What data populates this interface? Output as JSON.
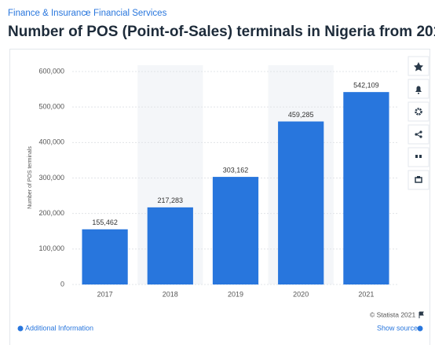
{
  "header": {
    "breadcrumb": [
      "Finance & Insurance",
      "Financial Services"
    ],
    "separator": "›"
  },
  "chart_data": {
    "type": "bar",
    "title": "Number of POS (Point-of-Sales) terminals in Nigeria from 201",
    "y_label": "Number of POS terminals",
    "categories": [
      "2017",
      "2018",
      "2019",
      "2020",
      "2021"
    ],
    "values": [
      155462,
      217283,
      303162,
      459285,
      542109
    ],
    "value_labels": [
      "155,462",
      "217,283",
      "303,162",
      "459,285",
      "542,109"
    ],
    "color": "#2876dd",
    "ylim": [
      0,
      600000
    ],
    "yticks": [
      0,
      {
        "value": 100000,
        "label": "100,000"
      },
      {
        "value": 200000,
        "label": "200,000"
      },
      {
        "value": 300000,
        "label": "300,000"
      },
      {
        "value": 400000,
        "label": "400,000"
      },
      {
        "value": 500000,
        "label": "500,000"
      },
      {
        "value": 600000,
        "label": "600,000"
      }
    ],
    "grid": true,
    "band_shading": true
  },
  "footer": {
    "credit": "© Statista 2021",
    "additional_info": "Additional Information",
    "show_source": "Show source"
  }
}
